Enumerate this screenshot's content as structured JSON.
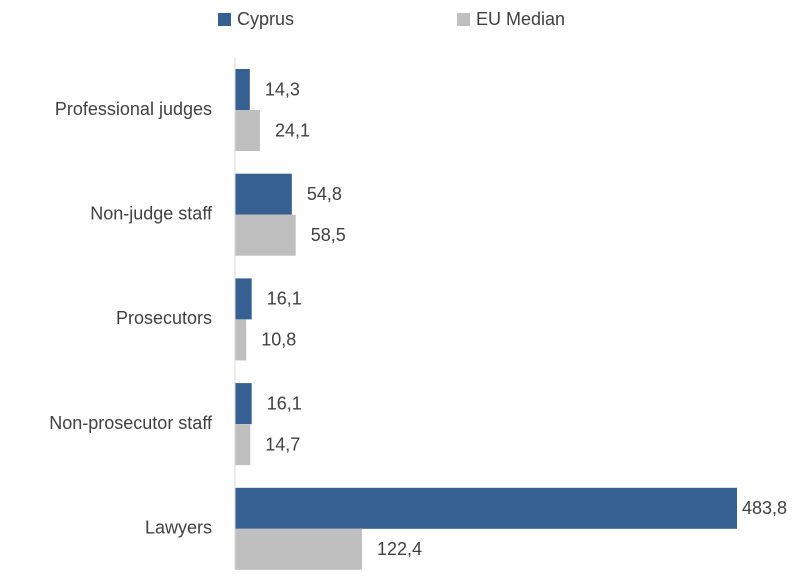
{
  "chart_data": {
    "type": "bar",
    "orientation": "horizontal",
    "categories": [
      "Professional judges",
      "Non-judge staff",
      "Prosecutors",
      "Non-prosecutor staff",
      "Lawyers"
    ],
    "series": [
      {
        "name": "Cyprus",
        "color": "#376092",
        "values": [
          14.3,
          54.8,
          16.1,
          16.1,
          483.8
        ],
        "value_labels": [
          "14,3",
          "54,8",
          "16,1",
          "16,1",
          "483,8"
        ]
      },
      {
        "name": "EU Median",
        "color": "#bfbfbf",
        "values": [
          24.1,
          58.5,
          10.8,
          14.7,
          122.4
        ],
        "value_labels": [
          "24,1",
          "58,5",
          "10,8",
          "14,7",
          "122,4"
        ]
      }
    ],
    "legend": "top"
  }
}
